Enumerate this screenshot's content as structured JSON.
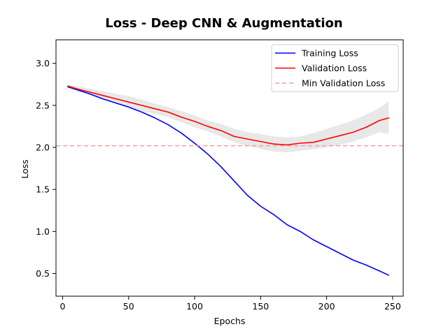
{
  "chart_data": {
    "type": "line",
    "title": "Loss - Deep CNN & Augmentation",
    "xlabel": "Epochs",
    "ylabel": "Loss",
    "xlim": [
      -5,
      258
    ],
    "ylim": [
      0.23,
      3.28
    ],
    "xticks": [
      0,
      50,
      100,
      150,
      200,
      250
    ],
    "yticks": [
      0.5,
      1.0,
      1.5,
      2.0,
      2.5,
      3.0
    ],
    "xtick_labels": [
      "0",
      "50",
      "100",
      "150",
      "200",
      "250"
    ],
    "ytick_labels": [
      "0.5",
      "1.0",
      "1.5",
      "2.0",
      "2.5",
      "3.0"
    ],
    "grid": false,
    "legend_position": "top-right",
    "series": [
      {
        "name": "Training Loss",
        "color": "#0000ff",
        "style": "solid",
        "x": [
          4,
          10,
          20,
          30,
          40,
          50,
          60,
          70,
          80,
          90,
          100,
          110,
          120,
          130,
          140,
          150,
          160,
          170,
          180,
          190,
          200,
          210,
          220,
          230,
          240,
          247
        ],
        "y": [
          2.72,
          2.69,
          2.64,
          2.58,
          2.53,
          2.48,
          2.42,
          2.35,
          2.27,
          2.17,
          2.05,
          1.92,
          1.77,
          1.6,
          1.43,
          1.3,
          1.2,
          1.08,
          1.0,
          0.9,
          0.82,
          0.74,
          0.66,
          0.6,
          0.53,
          0.48
        ]
      },
      {
        "name": "Validation Loss",
        "color": "#ff0000",
        "style": "solid",
        "x": [
          4,
          10,
          20,
          30,
          40,
          50,
          60,
          70,
          80,
          90,
          100,
          110,
          120,
          130,
          140,
          150,
          160,
          170,
          180,
          190,
          200,
          210,
          220,
          230,
          240,
          247
        ],
        "y": [
          2.73,
          2.7,
          2.66,
          2.62,
          2.58,
          2.54,
          2.5,
          2.46,
          2.42,
          2.36,
          2.31,
          2.25,
          2.2,
          2.13,
          2.1,
          2.07,
          2.04,
          2.03,
          2.05,
          2.06,
          2.1,
          2.14,
          2.18,
          2.24,
          2.32,
          2.35
        ]
      },
      {
        "name": "Min Validation Loss",
        "color": "#ff9999",
        "style": "dashed",
        "y_constant": 2.02
      }
    ],
    "band": {
      "color": "#e8e8e8",
      "x": [
        4,
        10,
        20,
        30,
        40,
        50,
        60,
        70,
        80,
        90,
        100,
        110,
        120,
        130,
        140,
        150,
        160,
        170,
        180,
        190,
        200,
        210,
        220,
        230,
        240,
        247
      ],
      "upper": [
        2.74,
        2.73,
        2.7,
        2.67,
        2.64,
        2.61,
        2.57,
        2.52,
        2.48,
        2.43,
        2.38,
        2.32,
        2.28,
        2.22,
        2.18,
        2.16,
        2.13,
        2.12,
        2.13,
        2.17,
        2.22,
        2.27,
        2.32,
        2.39,
        2.47,
        2.55
      ],
      "lower": [
        2.72,
        2.68,
        2.62,
        2.57,
        2.52,
        2.47,
        2.43,
        2.4,
        2.36,
        2.3,
        2.24,
        2.19,
        2.13,
        2.06,
        2.02,
        1.98,
        1.95,
        1.94,
        1.96,
        1.98,
        2.0,
        2.03,
        2.07,
        2.12,
        2.18,
        2.16
      ]
    }
  }
}
